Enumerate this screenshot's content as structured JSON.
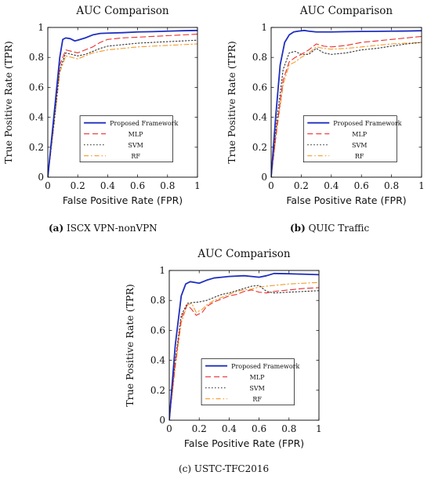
{
  "captions": [
    {
      "tag": "(a)",
      "text": "ISCX VPN-nonVPN"
    },
    {
      "tag": "(b)",
      "text": "QUIC Traffic"
    },
    {
      "tag": "(c)",
      "text": "USTC-TFC2016"
    }
  ],
  "chart_data": [
    {
      "type": "line",
      "title": "AUC Comparison",
      "xlabel": "False Positive Rate (FPR)",
      "ylabel": "True Positive Rate (TPR)",
      "xlim": [
        0,
        1
      ],
      "ylim": [
        0,
        1
      ],
      "xticks": [
        "0",
        "0.2",
        "0.4",
        "0.6",
        "0.8",
        "1"
      ],
      "yticks": [
        "0",
        "0.2",
        "0.4",
        "0.6",
        "0.8",
        "1"
      ],
      "grid": false,
      "legend": "center-bottom",
      "series": [
        {
          "name": "Proposed Framework",
          "color": "#1f2fbf",
          "style": "solid",
          "x": [
            0,
            0.04,
            0.08,
            0.1,
            0.12,
            0.15,
            0.18,
            0.2,
            0.25,
            0.3,
            0.35,
            0.4,
            0.5,
            0.6,
            0.7,
            0.8,
            0.9,
            1.0
          ],
          "y": [
            0,
            0.4,
            0.8,
            0.92,
            0.93,
            0.925,
            0.91,
            0.915,
            0.93,
            0.95,
            0.96,
            0.962,
            0.965,
            0.97,
            0.972,
            0.975,
            0.978,
            0.98
          ]
        },
        {
          "name": "MLP",
          "color": "#e8312f",
          "style": "dashed",
          "x": [
            0,
            0.04,
            0.08,
            0.12,
            0.16,
            0.2,
            0.25,
            0.3,
            0.35,
            0.4,
            0.5,
            0.6,
            0.7,
            0.8,
            0.9,
            1.0
          ],
          "y": [
            0,
            0.4,
            0.75,
            0.85,
            0.84,
            0.83,
            0.85,
            0.87,
            0.9,
            0.92,
            0.93,
            0.935,
            0.94,
            0.945,
            0.95,
            0.955
          ]
        },
        {
          "name": "SVM",
          "color": "#333333",
          "style": "dotted",
          "x": [
            0,
            0.04,
            0.08,
            0.12,
            0.16,
            0.2,
            0.25,
            0.3,
            0.35,
            0.4,
            0.5,
            0.6,
            0.7,
            0.8,
            0.9,
            1.0
          ],
          "y": [
            0,
            0.35,
            0.72,
            0.83,
            0.82,
            0.81,
            0.82,
            0.84,
            0.86,
            0.875,
            0.885,
            0.895,
            0.9,
            0.905,
            0.91,
            0.915
          ]
        },
        {
          "name": "RF",
          "color": "#f39a2b",
          "style": "dashdot",
          "x": [
            0,
            0.04,
            0.08,
            0.12,
            0.16,
            0.2,
            0.25,
            0.3,
            0.35,
            0.4,
            0.5,
            0.6,
            0.7,
            0.8,
            0.9,
            1.0
          ],
          "y": [
            0,
            0.33,
            0.7,
            0.81,
            0.8,
            0.79,
            0.81,
            0.83,
            0.84,
            0.85,
            0.86,
            0.87,
            0.875,
            0.88,
            0.885,
            0.89
          ]
        }
      ]
    },
    {
      "type": "line",
      "title": "AUC Comparison",
      "xlabel": "False Positive Rate (FPR)",
      "ylabel": "True Positive Rate (TPR)",
      "xlim": [
        0,
        1
      ],
      "ylim": [
        0,
        1
      ],
      "xticks": [
        "0",
        "0.2",
        "0.4",
        "0.6",
        "0.8",
        "1"
      ],
      "yticks": [
        "0",
        "0.2",
        "0.4",
        "0.6",
        "0.8",
        "1"
      ],
      "grid": false,
      "legend": "center-bottom",
      "series": [
        {
          "name": "Proposed Framework",
          "color": "#1f2fbf",
          "style": "solid",
          "x": [
            0,
            0.03,
            0.06,
            0.09,
            0.12,
            0.15,
            0.18,
            0.22,
            0.25,
            0.3,
            0.4,
            0.5,
            0.6,
            0.7,
            0.8,
            0.9,
            1.0
          ],
          "y": [
            0,
            0.4,
            0.75,
            0.9,
            0.95,
            0.97,
            0.975,
            0.98,
            0.975,
            0.97,
            0.97,
            0.972,
            0.973,
            0.974,
            0.975,
            0.976,
            0.978
          ]
        },
        {
          "name": "MLP",
          "color": "#e8312f",
          "style": "dashed",
          "x": [
            0,
            0.04,
            0.08,
            0.12,
            0.16,
            0.2,
            0.25,
            0.3,
            0.35,
            0.4,
            0.5,
            0.6,
            0.7,
            0.8,
            0.9,
            1.0
          ],
          "y": [
            0,
            0.35,
            0.65,
            0.77,
            0.8,
            0.82,
            0.85,
            0.89,
            0.875,
            0.87,
            0.88,
            0.9,
            0.91,
            0.92,
            0.93,
            0.94
          ]
        },
        {
          "name": "SVM",
          "color": "#333333",
          "style": "dotted",
          "x": [
            0,
            0.04,
            0.08,
            0.12,
            0.16,
            0.2,
            0.25,
            0.3,
            0.35,
            0.4,
            0.5,
            0.6,
            0.7,
            0.8,
            0.9,
            1.0
          ],
          "y": [
            0,
            0.4,
            0.72,
            0.83,
            0.84,
            0.82,
            0.82,
            0.86,
            0.83,
            0.82,
            0.83,
            0.85,
            0.86,
            0.875,
            0.89,
            0.9
          ]
        },
        {
          "name": "RF",
          "color": "#f39a2b",
          "style": "dashdot",
          "x": [
            0,
            0.04,
            0.08,
            0.12,
            0.16,
            0.2,
            0.25,
            0.3,
            0.35,
            0.4,
            0.5,
            0.6,
            0.7,
            0.8,
            0.9,
            1.0
          ],
          "y": [
            0,
            0.33,
            0.62,
            0.75,
            0.77,
            0.8,
            0.83,
            0.87,
            0.86,
            0.855,
            0.86,
            0.87,
            0.88,
            0.89,
            0.895,
            0.9
          ]
        }
      ]
    },
    {
      "type": "line",
      "title": "AUC Comparison",
      "xlabel": "False Positive Rate (FPR)",
      "ylabel": "True Positive Rate (TPR)",
      "xlim": [
        0,
        1
      ],
      "ylim": [
        0,
        1
      ],
      "xticks": [
        "0",
        "0.2",
        "0.4",
        "0.6",
        "0.8",
        "1"
      ],
      "yticks": [
        "0",
        "0.2",
        "0.4",
        "0.6",
        "0.8",
        "1"
      ],
      "grid": false,
      "legend": "center-bottom",
      "series": [
        {
          "name": "Proposed Framework",
          "color": "#1f2fbf",
          "style": "solid",
          "x": [
            0,
            0.04,
            0.08,
            0.11,
            0.14,
            0.17,
            0.2,
            0.25,
            0.3,
            0.35,
            0.4,
            0.5,
            0.55,
            0.6,
            0.65,
            0.7,
            0.8,
            0.9,
            1.0
          ],
          "y": [
            0,
            0.5,
            0.83,
            0.91,
            0.925,
            0.92,
            0.915,
            0.935,
            0.95,
            0.955,
            0.96,
            0.965,
            0.96,
            0.955,
            0.965,
            0.98,
            0.978,
            0.975,
            0.972
          ]
        },
        {
          "name": "MLP",
          "color": "#e8312f",
          "style": "dashed",
          "x": [
            0,
            0.04,
            0.08,
            0.12,
            0.15,
            0.18,
            0.22,
            0.25,
            0.3,
            0.35,
            0.4,
            0.45,
            0.5,
            0.55,
            0.6,
            0.65,
            0.7,
            0.8,
            0.9,
            1.0
          ],
          "y": [
            0,
            0.38,
            0.68,
            0.77,
            0.74,
            0.7,
            0.72,
            0.76,
            0.79,
            0.81,
            0.83,
            0.84,
            0.86,
            0.87,
            0.855,
            0.85,
            0.86,
            0.87,
            0.88,
            0.885
          ]
        },
        {
          "name": "SVM",
          "color": "#333333",
          "style": "dotted",
          "x": [
            0,
            0.04,
            0.08,
            0.12,
            0.15,
            0.2,
            0.25,
            0.3,
            0.35,
            0.4,
            0.5,
            0.55,
            0.6,
            0.65,
            0.7,
            0.8,
            0.9,
            1.0
          ],
          "y": [
            0,
            0.4,
            0.7,
            0.78,
            0.785,
            0.79,
            0.8,
            0.82,
            0.84,
            0.85,
            0.88,
            0.895,
            0.9,
            0.86,
            0.85,
            0.855,
            0.86,
            0.865
          ]
        },
        {
          "name": "RF",
          "color": "#f39a2b",
          "style": "dashdot",
          "x": [
            0,
            0.04,
            0.08,
            0.12,
            0.15,
            0.18,
            0.22,
            0.25,
            0.3,
            0.35,
            0.4,
            0.45,
            0.5,
            0.55,
            0.6,
            0.7,
            0.8,
            0.9,
            1.0
          ],
          "y": [
            0,
            0.35,
            0.65,
            0.77,
            0.78,
            0.72,
            0.74,
            0.77,
            0.8,
            0.82,
            0.84,
            0.86,
            0.87,
            0.875,
            0.89,
            0.9,
            0.91,
            0.915,
            0.92
          ]
        }
      ]
    }
  ]
}
